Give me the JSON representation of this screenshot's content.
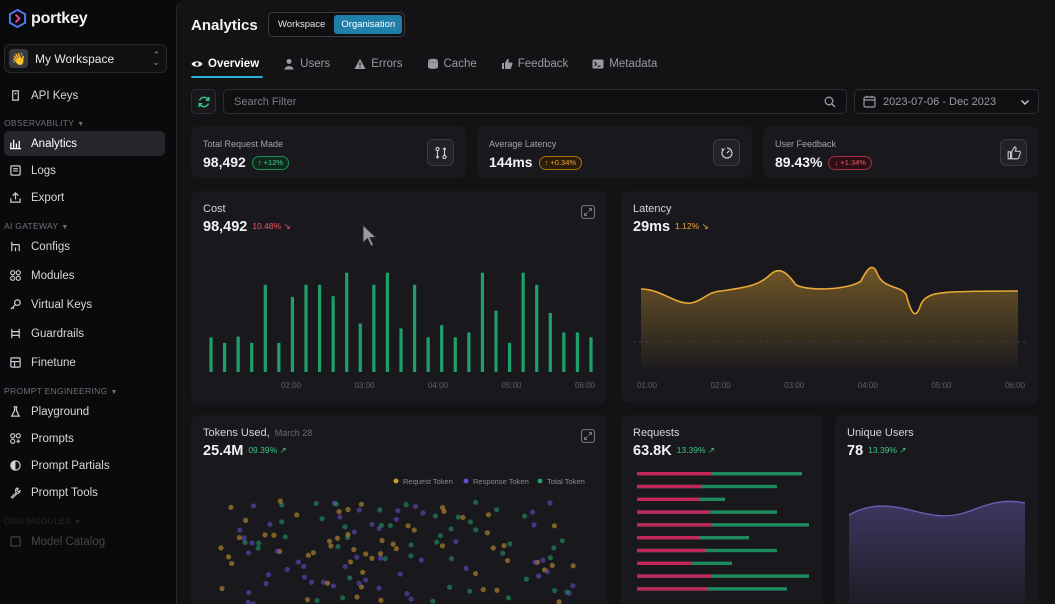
{
  "brand": {
    "name": "portkey"
  },
  "workspace": {
    "emoji": "👋",
    "name": "My Workspace"
  },
  "sidebar": {
    "api_keys": "API Keys",
    "sections": {
      "observability": "OBSERVABILITY",
      "ai_gateway": "AI GATEWAY",
      "prompt_engineering": "PROMPT ENGINEERING",
      "org_modules": "ORG MODULES"
    },
    "items": {
      "analytics": "Analytics",
      "logs": "Logs",
      "export": "Export",
      "configs": "Configs",
      "modules": "Modules",
      "virtual_keys": "Virtual Keys",
      "guardrails": "Guardrails",
      "finetune": "Finetune",
      "playground": "Playground",
      "prompts": "Prompts",
      "prompt_partials": "Prompt Partials",
      "prompt_tools": "Prompt Tools",
      "model_catalog": "Model Catalog"
    },
    "active": "analytics"
  },
  "header": {
    "title": "Analytics",
    "toggle": {
      "workspace": "Workspace",
      "organisation": "Organisation",
      "selected": "Organisation"
    }
  },
  "tabs": [
    {
      "label": "Overview",
      "icon": "eye-icon",
      "active": true
    },
    {
      "label": "Users",
      "icon": "user-icon"
    },
    {
      "label": "Errors",
      "icon": "warning-icon"
    },
    {
      "label": "Cache",
      "icon": "database-icon"
    },
    {
      "label": "Feedback",
      "icon": "thumbs-up-icon"
    },
    {
      "label": "Metadata",
      "icon": "terminal-icon"
    }
  ],
  "filters": {
    "search_placeholder": "Search Filter",
    "date_range": "2023-07-06 - Dec 2023"
  },
  "stats": {
    "total_requests": {
      "label": "Total Request Made",
      "value": "98,492",
      "delta": "↑ +12%"
    },
    "avg_latency": {
      "label": "Average Latency",
      "value": "144ms",
      "delta": "↑ +0.34%"
    },
    "user_feedback": {
      "label": "User Feedback",
      "value": "89.43%",
      "delta": "↓ +1.34%"
    }
  },
  "colors": {
    "accent": "#1e7fa8",
    "green_bar": "#1fa06a",
    "latency_line": "#e8a935",
    "request_token": "#d39a2e",
    "response_token": "#6a4fd6",
    "total_token": "#1fa06a",
    "requests_pink": "#c2265a",
    "unique_users": "#6e5ab4"
  },
  "cost": {
    "title": "Cost",
    "value": "98,492",
    "delta": "10.48%",
    "chart_data": {
      "type": "bar",
      "x_ticks": [
        "02:00",
        "03:00",
        "04:00",
        "05:00",
        "06:00"
      ],
      "values": [
        43,
        36,
        44,
        36,
        108,
        36,
        93,
        108,
        108,
        94,
        123,
        60,
        108,
        123,
        54,
        108,
        43,
        58,
        43,
        49,
        123,
        76,
        36,
        123,
        108,
        73,
        49,
        49,
        43
      ]
    }
  },
  "latency": {
    "title": "Latency",
    "value": "29ms",
    "delta": "1.12%",
    "chart_data": {
      "type": "area",
      "x_ticks": [
        "01:00",
        "02:00",
        "03:00",
        "04:00",
        "05:00",
        "06:00"
      ]
    }
  },
  "tokens": {
    "title": "Tokens Used,",
    "date": "March 28",
    "value": "25.4M",
    "delta": "09.39%",
    "legend": [
      "Request Token",
      "Response Token",
      "Total Token"
    ]
  },
  "requests": {
    "title": "Requests",
    "value": "63.8K",
    "delta": "13.39%"
  },
  "unique_users": {
    "title": "Unique Users",
    "value": "78",
    "delta": "13.39%"
  }
}
